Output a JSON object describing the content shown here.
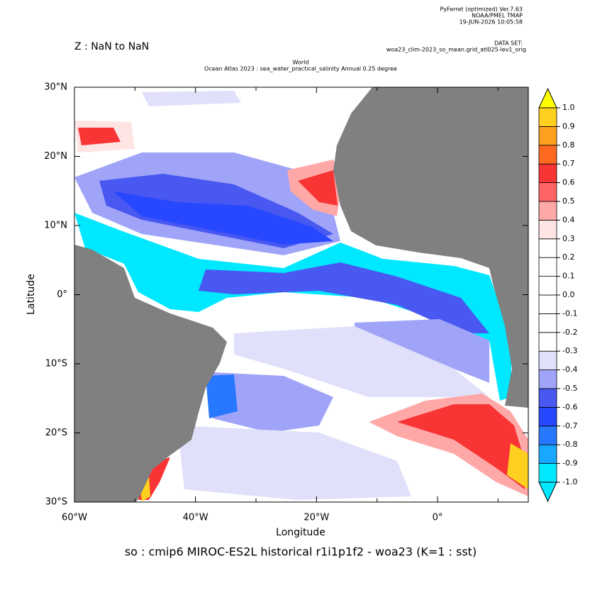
{
  "header": {
    "software": [
      "PyFerret (optimized) Ver.7.63",
      "NOAA/PMEL TMAP",
      "19-JUN-2026 10:05:58"
    ],
    "dataset_label": "DATA SET:",
    "dataset": "woa23_clim-2023_so_mean.grid_atl025-lev1_orig",
    "z_range": "Z : NaN to NaN"
  },
  "chart_data": {
    "type": "map",
    "title": [
      "World",
      "Ocean Atlas 2023 : sea_water_practical_salinity Annual  0.25 degree"
    ],
    "x_label": "Longitude",
    "y_label": "Latitude",
    "footer": "so : cmip6 MIROC-ES2L historical r1i1p1f2 - woa23  (K=1 : sst)",
    "xlim": [
      -60,
      15
    ],
    "ylim": [
      -30,
      30
    ],
    "xticks": [
      {
        "value": -60,
        "label": "60°W"
      },
      {
        "value": -40,
        "label": "40°W"
      },
      {
        "value": -20,
        "label": "20°W"
      },
      {
        "value": 0,
        "label": "0°"
      }
    ],
    "xminor": [
      -50,
      -30,
      -10,
      10
    ],
    "yticks": [
      {
        "value": 30,
        "label": "30°N"
      },
      {
        "value": 20,
        "label": "20°N"
      },
      {
        "value": 10,
        "label": "10°N"
      },
      {
        "value": 0,
        "label": "0°"
      },
      {
        "value": -10,
        "label": "10°S"
      },
      {
        "value": -20,
        "label": "20°S"
      },
      {
        "value": -30,
        "label": "30°S"
      }
    ],
    "land_color": "#808080",
    "colorbar": {
      "levels": [
        {
          "value": -1,
          "label": "-1.0"
        },
        -0.9,
        -0.8,
        -0.7,
        -0.6,
        -0.5,
        -0.4,
        -0.3,
        -0.2,
        -0.1,
        {
          "value": 0,
          "label": "0.0"
        },
        0.1,
        0.2,
        0.3,
        0.4,
        0.5,
        0.6,
        0.7,
        0.8,
        0.9,
        {
          "value": 1,
          "label": "1.0"
        }
      ],
      "colors": [
        "#00e8ff",
        "#18a8ff",
        "#2878ff",
        "#2848ff",
        "#4858f0",
        "#a0a4f8",
        "#e0e0fa",
        "#ffffff",
        "#ffffff",
        "#ffffff",
        "#ffffff",
        "#ffffff",
        "#ffffff",
        "#ffe4e4",
        "#ffa8a8",
        "#ff6464",
        "#f83434",
        "#ff6a20",
        "#ffa020",
        "#ffd020"
      ],
      "under_color": "#00e8ff",
      "over_color": "#ffff00"
    }
  }
}
